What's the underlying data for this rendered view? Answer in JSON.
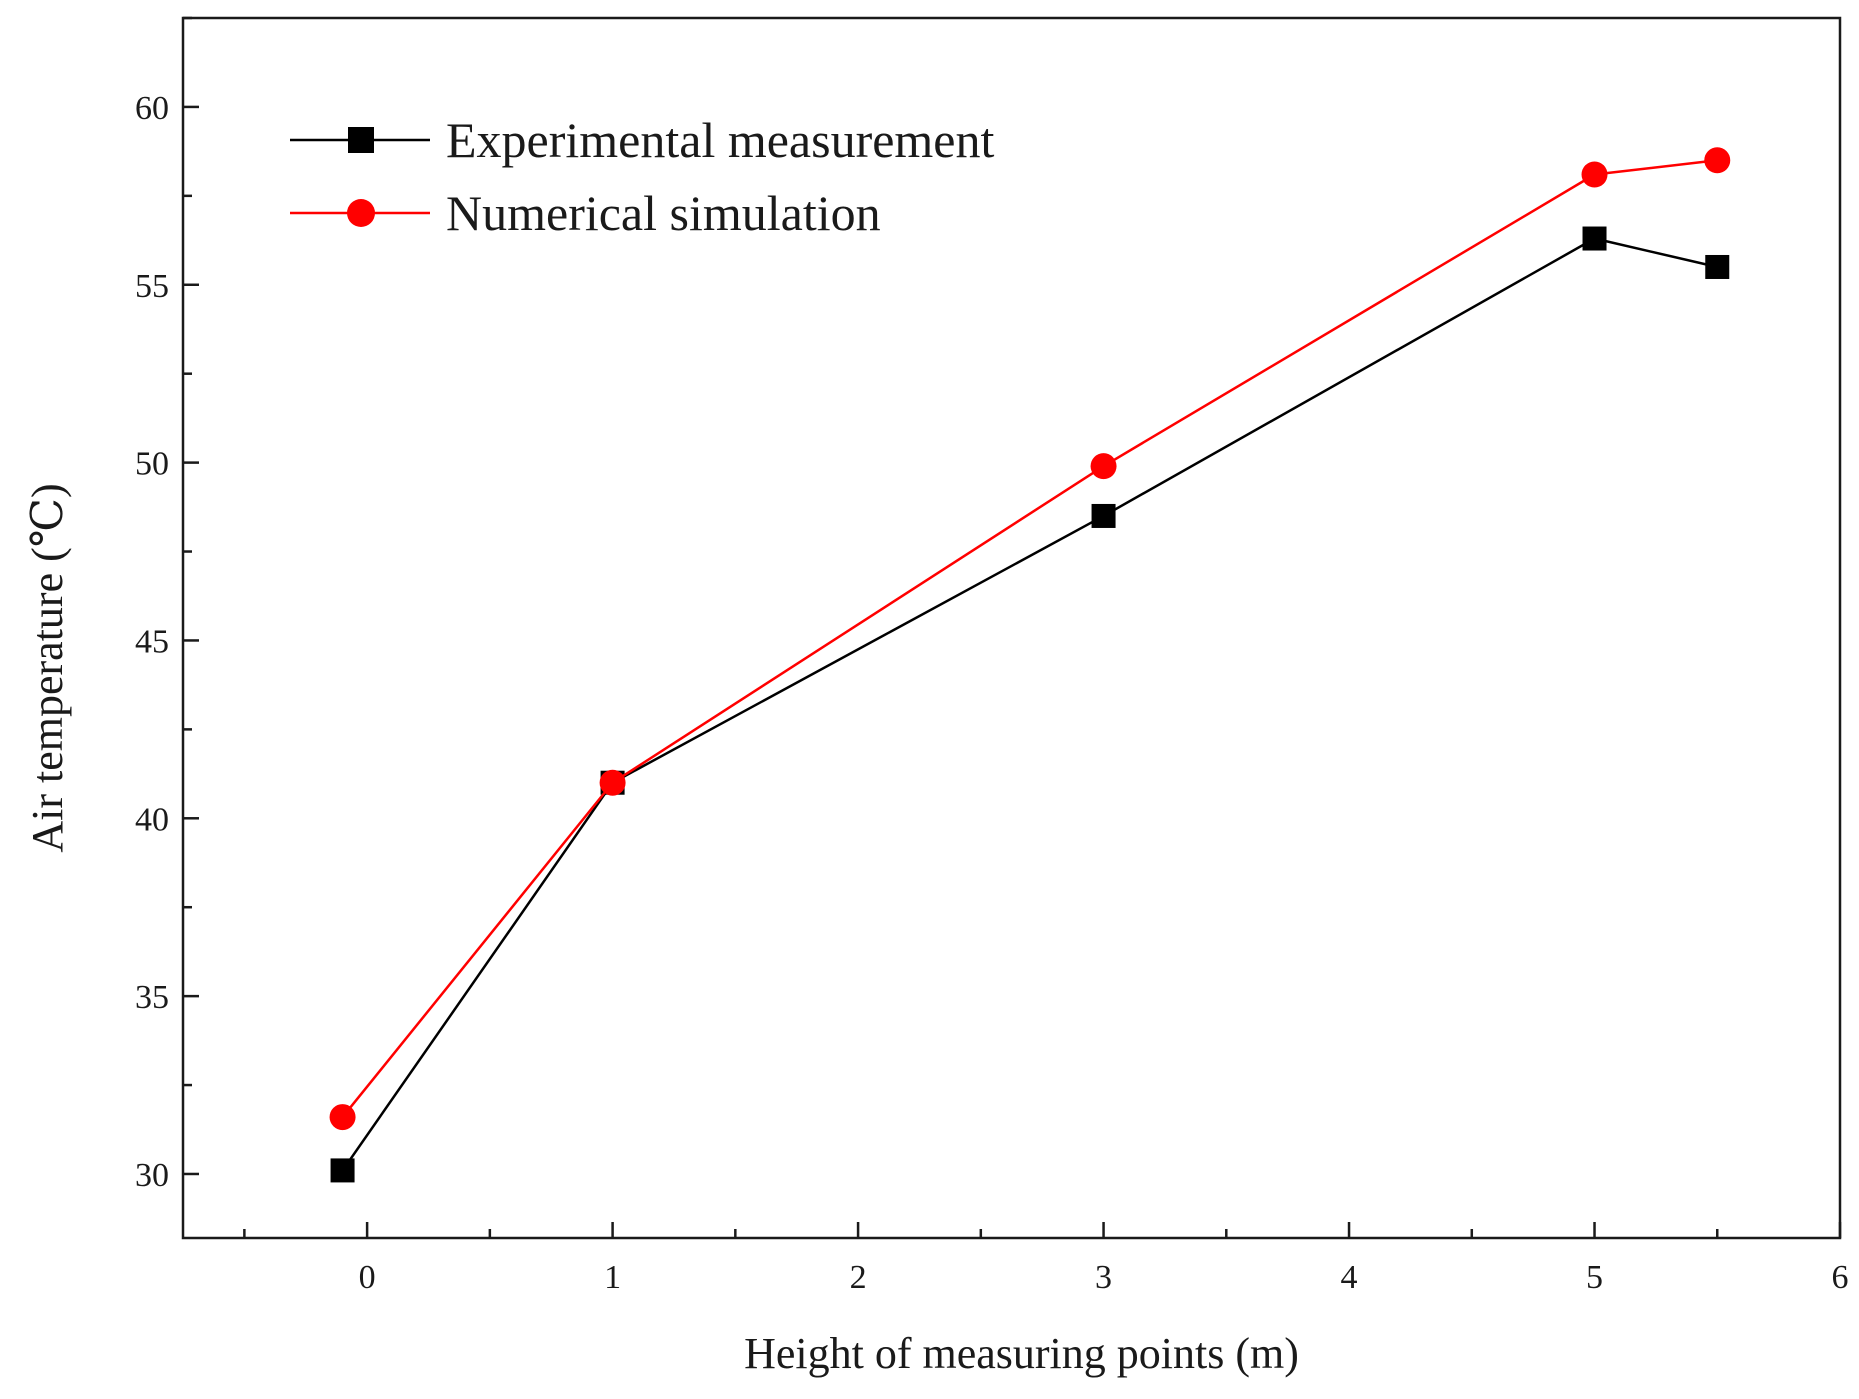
{
  "chart_data": {
    "type": "line",
    "title": "",
    "xlabel": "Height of measuring points (m)",
    "ylabel": "Air temperature (℃)",
    "xlim": [
      -0.75,
      6
    ],
    "ylim": [
      28.2,
      62.5
    ],
    "x_ticks": [
      0,
      1,
      2,
      3,
      4,
      5,
      6
    ],
    "x_tick_labels": [
      "0",
      "1",
      "2",
      "3",
      "4",
      "5",
      "6"
    ],
    "y_ticks": [
      30,
      35,
      40,
      45,
      50,
      55,
      60
    ],
    "y_tick_labels": [
      "30",
      "35",
      "40",
      "45",
      "50",
      "55",
      "60"
    ],
    "grid": false,
    "legend_position": "top-left",
    "series": [
      {
        "name": "Experimental measurement",
        "color": "#000000",
        "marker": "square",
        "x": [
          -0.1,
          1,
          3,
          5,
          5.5
        ],
        "values": [
          30.1,
          41.0,
          48.5,
          56.3,
          55.5
        ]
      },
      {
        "name": "Numerical simulation",
        "color": "#ff0000",
        "marker": "circle",
        "x": [
          -0.1,
          1,
          3,
          5,
          5.5
        ],
        "values": [
          31.6,
          41.0,
          49.9,
          58.1,
          58.5
        ]
      }
    ]
  }
}
